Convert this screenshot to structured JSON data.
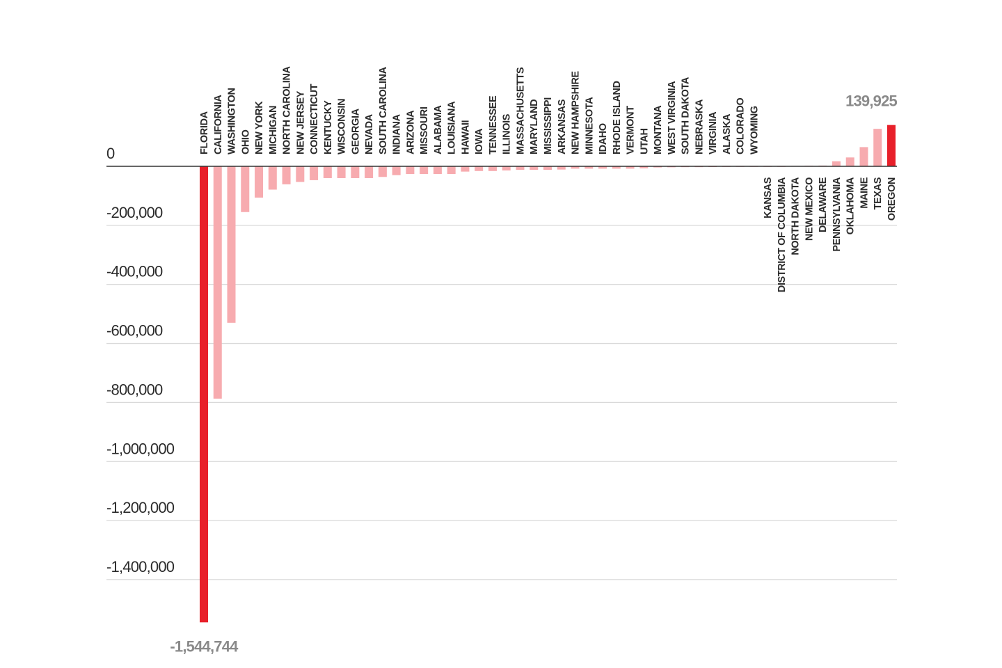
{
  "chart_data": {
    "type": "bar",
    "title": "",
    "xlabel": "",
    "ylabel": "",
    "ylim": [
      -1544744,
      139925
    ],
    "yticks": [
      0,
      -200000,
      -400000,
      -600000,
      -800000,
      -1000000,
      -1200000,
      -1400000
    ],
    "ytick_labels": [
      "0",
      "-200,000",
      "-400,000",
      "-600,000",
      "-800,000",
      "-1,000,000",
      "-1,200,000",
      "-1,400,000"
    ],
    "grid": true,
    "colors": {
      "highlight": "#e8202a",
      "default": "#f7abaf",
      "zero_line": "#333333",
      "grid": "#d9d9d9"
    },
    "categories": [
      "FLORIDA",
      "CALIFORNIA",
      "WASHINGTON",
      "OHIO",
      "NEW YORK",
      "MICHIGAN",
      "NORTH CAROLINA",
      "NEW JERSEY",
      "CONNECTICUT",
      "KENTUCKY",
      "WISCONSIN",
      "GEORGIA",
      "NEVADA",
      "SOUTH CAROLINA",
      "INDIANA",
      "ARIZONA",
      "MISSOURI",
      "ALABAMA",
      "LOUISIANA",
      "HAWAII",
      "IOWA",
      "TENNESSEE",
      "ILLINOIS",
      "MASSACHUSETTS",
      "MARYLAND",
      "MISSISSIPPI",
      "ARKANSAS",
      "NEW HAMPSHIRE",
      "MINNESOTA",
      "IDAHO",
      "RHODE ISLAND",
      "VERMONT",
      "UTAH",
      "MONTANA",
      "WEST VIRGINIA",
      "SOUTH DAKOTA",
      "NEBRASKA",
      "VIRGINIA",
      "ALASKA",
      "COLORADO",
      "WYOMING",
      "KANSAS",
      "DISTRICT OF COLUMBIA",
      "NORTH DAKOTA",
      "NEW MEXICO",
      "DELAWARE",
      "PENNSYLVANIA",
      "OKLAHOMA",
      "MAINE",
      "TEXAS",
      "OREGON"
    ],
    "values": [
      -1544744,
      -787000,
      -530000,
      -155000,
      -106000,
      -79000,
      -61000,
      -53000,
      -47000,
      -40000,
      -40000,
      -40000,
      -40000,
      -36000,
      -30000,
      -26000,
      -26000,
      -26000,
      -26000,
      -18000,
      -16000,
      -16000,
      -14000,
      -12000,
      -12000,
      -12000,
      -11000,
      -8000,
      -8000,
      -8000,
      -8000,
      -8000,
      -7000,
      -4000,
      -3500,
      -3000,
      -3000,
      -2500,
      -2000,
      -1500,
      -1000,
      0,
      0,
      1500,
      2000,
      2500,
      17000,
      30000,
      65000,
      127000,
      139925
    ],
    "highlighted": [
      "FLORIDA",
      "OREGON"
    ],
    "annotations": [
      {
        "category": "FLORIDA",
        "text": "-1,544,744"
      },
      {
        "category": "OREGON",
        "text": "139,925"
      }
    ]
  }
}
